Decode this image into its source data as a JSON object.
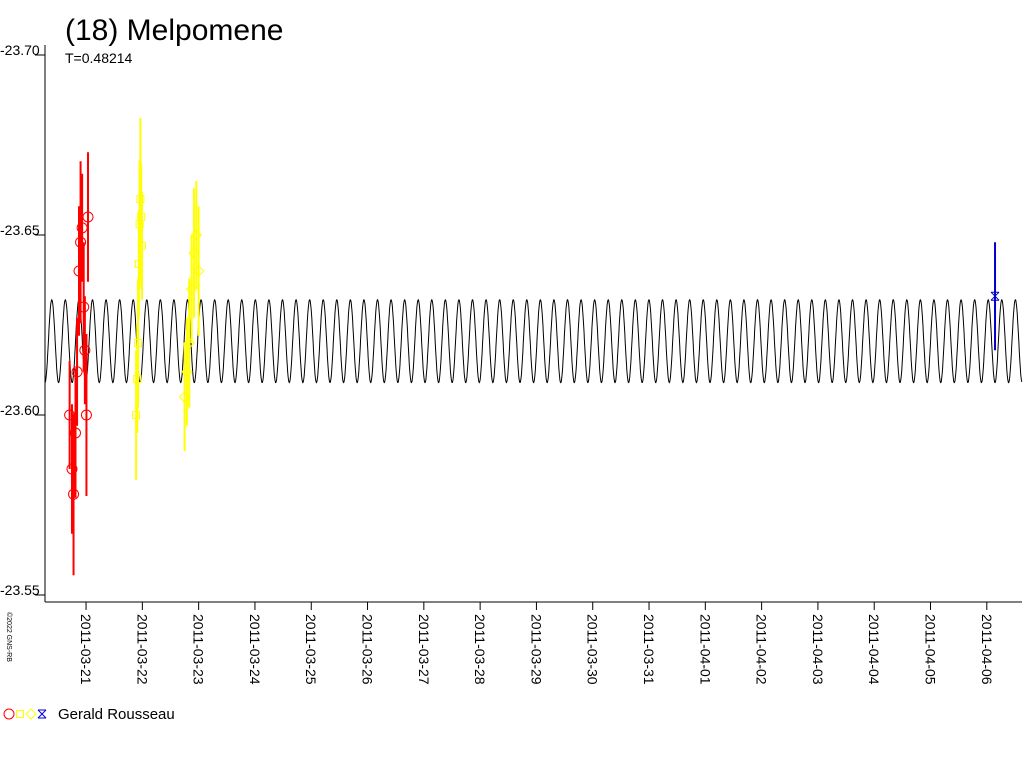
{
  "chart_data": {
    "type": "lightcurve",
    "title": "(18) Melpomene",
    "period": {
      "value": 0.48214,
      "label": "T=0.48214"
    },
    "copyright": "©2022 GNS-RB",
    "legend": "Gerald Rousseau",
    "xlim": [
      "2011-03-20T06:30",
      "2011-04-06T15:00"
    ],
    "xticks": [
      "2011-03-21",
      "2011-03-22",
      "2011-03-23",
      "2011-03-24",
      "2011-03-25",
      "2011-03-26",
      "2011-03-27",
      "2011-03-28",
      "2011-03-29",
      "2011-03-30",
      "2011-03-31",
      "2011-04-01",
      "2011-04-02",
      "2011-04-03",
      "2011-04-04",
      "2011-04-05",
      "2011-04-06"
    ],
    "ylim": [
      -23.7,
      -23.55
    ],
    "yticks": [
      {
        "value": -23.7,
        "label": "-23.70"
      },
      -23.65,
      {
        "value": -23.6,
        "label": "-23.60"
      },
      -23.55
    ],
    "model": {
      "min": -23.632,
      "max": -23.609,
      "color": "#000000"
    },
    "series": [
      {
        "marker": "circle",
        "color": "#ff0000",
        "x": [
          "2011-03-20T17:00",
          "2011-03-20T18:00",
          "2011-03-20T18:40",
          "2011-03-20T19:30",
          "2011-03-20T20:10",
          "2011-03-20T21:00",
          "2011-03-20T21:40",
          "2011-03-20T22:20",
          "2011-03-20T23:00",
          "2011-03-20T23:30",
          "2011-03-21T00:10",
          "2011-03-21T00:50"
        ],
        "values": [
          -23.6,
          -23.585,
          -23.578,
          -23.595,
          -23.612,
          -23.64,
          -23.648,
          -23.652,
          -23.63,
          -23.618,
          -23.6,
          -23.655
        ],
        "errors": [
          0.01,
          0.012,
          0.015,
          0.012,
          0.01,
          0.012,
          0.015,
          0.01,
          0.012,
          0.01,
          0.015,
          0.012
        ]
      },
      {
        "marker": "square",
        "color": "#ffff00",
        "x": [
          "2011-03-21T21:20",
          "2011-03-21T21:50",
          "2011-03-21T22:10",
          "2011-03-21T22:30",
          "2011-03-21T22:50",
          "2011-03-21T23:10",
          "2011-03-21T23:30",
          "2011-03-21T23:50"
        ],
        "values": [
          -23.6,
          -23.61,
          -23.62,
          -23.642,
          -23.653,
          -23.66,
          -23.655,
          -23.647
        ],
        "errors": [
          0.012,
          0.01,
          0.012,
          0.01,
          0.012,
          0.015,
          0.01,
          0.01
        ]
      },
      {
        "marker": "diamond",
        "color": "#ffff00",
        "x": [
          "2011-03-22T18:00",
          "2011-03-22T19:00",
          "2011-03-22T20:00",
          "2011-03-22T21:00",
          "2011-03-22T22:00",
          "2011-03-22T23:00",
          "2011-03-23T00:00"
        ],
        "values": [
          -23.605,
          -23.612,
          -23.62,
          -23.635,
          -23.645,
          -23.65,
          -23.64
        ],
        "errors": [
          0.01,
          0.01,
          0.012,
          0.01,
          0.012,
          0.01,
          0.012
        ]
      },
      {
        "marker": "star",
        "color": "#0000cc",
        "x": [
          "2011-04-06T03:30"
        ],
        "values": [
          -23.633
        ],
        "errors": [
          0.01
        ]
      }
    ]
  }
}
